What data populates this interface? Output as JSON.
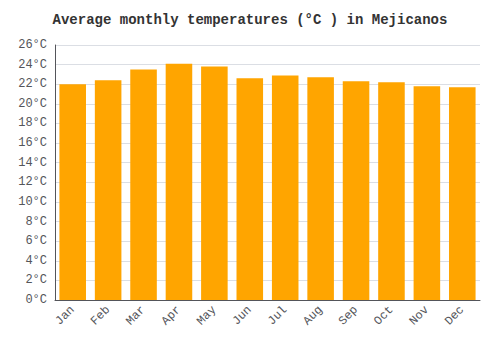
{
  "chart_data": {
    "type": "bar",
    "title": "Average monthly temperatures (°C ) in Mejicanos",
    "categories": [
      "Jan",
      "Feb",
      "Mar",
      "Apr",
      "May",
      "Jun",
      "Jul",
      "Aug",
      "Sep",
      "Oct",
      "Nov",
      "Dec"
    ],
    "values": [
      22.0,
      22.4,
      23.5,
      24.1,
      23.8,
      22.6,
      22.9,
      22.7,
      22.3,
      22.2,
      21.8,
      21.7
    ],
    "color": "#FFA500",
    "ylim": [
      0,
      26
    ],
    "yticks": [
      {
        "value": 0,
        "label": "0°C"
      },
      {
        "value": 2,
        "label": "2°C"
      },
      {
        "value": 4,
        "label": "4°C"
      },
      {
        "value": 6,
        "label": "6°C"
      },
      {
        "value": 8,
        "label": "8°C"
      },
      {
        "value": 10,
        "label": "10°C"
      },
      {
        "value": 12,
        "label": "12°C"
      },
      {
        "value": 14,
        "label": "14°C"
      },
      {
        "value": 16,
        "label": "16°C"
      },
      {
        "value": 18,
        "label": "18°C"
      },
      {
        "value": 20,
        "label": "20°C"
      },
      {
        "value": 22,
        "label": "22°C"
      },
      {
        "value": 24,
        "label": "24°C"
      },
      {
        "value": 26,
        "label": "26°C"
      }
    ],
    "grid": true
  }
}
